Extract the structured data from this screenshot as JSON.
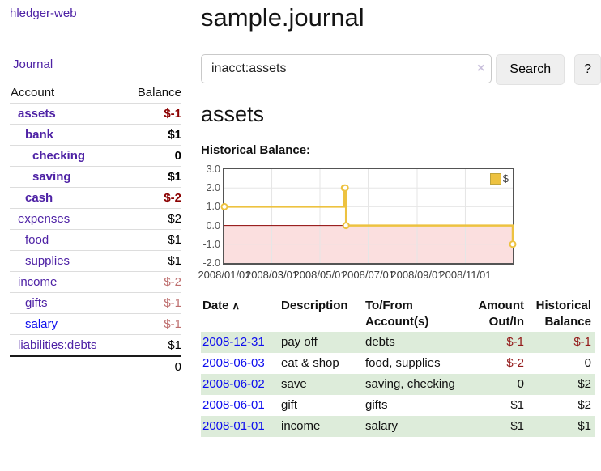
{
  "app": {
    "title": "hledger-web",
    "nav_journal": "Journal"
  },
  "sidebar": {
    "columns": {
      "account": "Account",
      "balance": "Balance"
    },
    "accounts": [
      {
        "name": "assets",
        "indent": 1,
        "bold": true,
        "balance": "$-1",
        "balance_style": "neg-b"
      },
      {
        "name": "bank",
        "indent": 2,
        "bold": true,
        "balance": "$1",
        "balance_style": "pos-b"
      },
      {
        "name": "checking",
        "indent": 3,
        "bold": true,
        "balance": "0",
        "balance_style": "pos-b"
      },
      {
        "name": "saving",
        "indent": 3,
        "bold": true,
        "balance": "$1",
        "balance_style": "pos-b"
      },
      {
        "name": "cash",
        "indent": 2,
        "bold": true,
        "balance": "$-2",
        "balance_style": "neg-b"
      },
      {
        "name": "expenses",
        "indent": 1,
        "bold": false,
        "balance": "$2",
        "balance_style": "pos"
      },
      {
        "name": "food",
        "indent": 2,
        "bold": false,
        "balance": "$1",
        "balance_style": "pos"
      },
      {
        "name": "supplies",
        "indent": 2,
        "bold": false,
        "balance": "$1",
        "balance_style": "pos"
      },
      {
        "name": "income",
        "indent": 1,
        "bold": false,
        "balance": "$-2",
        "balance_style": "neg-muted"
      },
      {
        "name": "gifts",
        "indent": 2,
        "bold": false,
        "balance": "$-1",
        "balance_style": "neg-muted"
      },
      {
        "name": "salary",
        "indent": 2,
        "bold": false,
        "balance": "$-1",
        "balance_style": "neg-muted",
        "link_color": "blue"
      },
      {
        "name": "liabilities:debts",
        "indent": 1,
        "bold": false,
        "balance": "$1",
        "balance_style": "pos"
      }
    ],
    "total": "0"
  },
  "header": {
    "title": "sample.journal"
  },
  "search": {
    "value": "inacct:assets",
    "clear_icon": "×",
    "button_label": "Search",
    "help_label": "?"
  },
  "account_page": {
    "heading": "assets",
    "chart_label": "Historical Balance:"
  },
  "chart_data": {
    "type": "line",
    "title": "Historical Balance",
    "step": true,
    "legend": "$",
    "legend_position": "top-right",
    "grid": true,
    "ylim": [
      -2,
      3
    ],
    "y_ticks": [
      3.0,
      2.0,
      1.0,
      0.0,
      -1.0,
      -2.0
    ],
    "xlim": [
      "2008-01-01",
      "2008-12-31"
    ],
    "x_tick_dates": [
      "2008-01-01",
      "2008-03-01",
      "2008-05-01",
      "2008-07-01",
      "2008-09-01",
      "2008-11-01"
    ],
    "x_ticks": [
      "2008/01/01",
      "2008/03/01",
      "2008/05/01",
      "2008/07/01",
      "2008/09/01",
      "2008/11/01"
    ],
    "series": [
      {
        "name": "$",
        "color": "#EDC240",
        "points": [
          {
            "date": "2008-01-01",
            "value": 1
          },
          {
            "date": "2008-06-01",
            "value": 2
          },
          {
            "date": "2008-06-02",
            "value": 2
          },
          {
            "date": "2008-06-03",
            "value": 0
          },
          {
            "date": "2008-12-31",
            "value": -1
          }
        ]
      }
    ],
    "zero_line_color": "#8B0000",
    "negative_fill": "#FBDFDF",
    "grid_color": "#E6E6E6",
    "border_color": "#545454"
  },
  "register": {
    "columns": [
      "Date",
      "Description",
      "To/From Account(s)",
      "Amount Out/In",
      "Historical Balance"
    ],
    "sort_icon": "∧",
    "rows": [
      {
        "date": "2008-12-31",
        "description": "pay off",
        "accounts": "debts",
        "amount": "$-1",
        "amount_neg": true,
        "balance": "$-1",
        "balance_neg": true
      },
      {
        "date": "2008-06-03",
        "description": "eat & shop",
        "accounts": "food, supplies",
        "amount": "$-2",
        "amount_neg": true,
        "balance": "0",
        "balance_neg": false
      },
      {
        "date": "2008-06-02",
        "description": "save",
        "accounts": "saving, checking",
        "amount": "0",
        "amount_neg": false,
        "balance": "$2",
        "balance_neg": false
      },
      {
        "date": "2008-06-01",
        "description": "gift",
        "accounts": "gifts",
        "amount": "$1",
        "amount_neg": false,
        "balance": "$2",
        "balance_neg": false
      },
      {
        "date": "2008-01-01",
        "description": "income",
        "accounts": "salary",
        "amount": "$1",
        "amount_neg": false,
        "balance": "$1",
        "balance_neg": false
      }
    ]
  }
}
